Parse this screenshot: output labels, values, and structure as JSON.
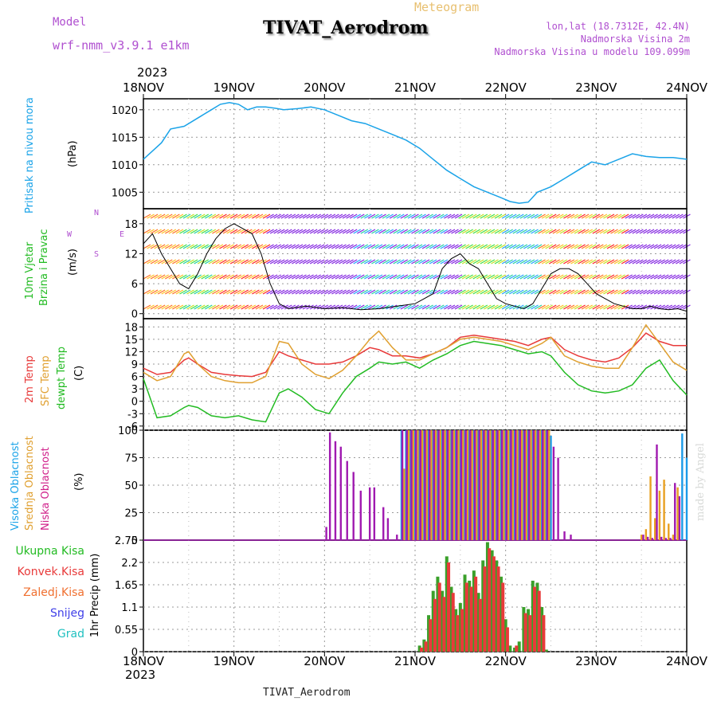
{
  "header": {
    "model_label": "Model",
    "model_name": "wrf-nmm_v3.9.1 e1km",
    "title": "TIVAT_Aerodrom",
    "subtitle": "Meteogram",
    "lonlat": "lon,lat (18.7312E, 42.4N)",
    "altitude": "Nadmorska Visina 2m",
    "model_altitude": "Nadmorska Visina u modelu 109.099m",
    "year_top": "2023",
    "year_bottom": "2023",
    "footer_station": "TIVAT_Aerodrom",
    "credit": "made by Angel"
  },
  "colors": {
    "pressure": "#1aa3e8",
    "temp2m": "#e83a3a",
    "sfc_temp": "#e0a030",
    "dewpoint": "#22bb22",
    "cloud_high": "#1a9ae8",
    "cloud_mid": "#e8a020",
    "cloud_low": "#a01ab0",
    "precip_total": "#3aa02a",
    "precip_conv": "#e83a3a",
    "title_purple": "#b050d0"
  },
  "panels": {
    "pressure": {
      "labels": [
        "Pritisak na nivou mora"
      ],
      "unit": "(hPa)",
      "yticks": [
        "1005",
        "1010",
        "1015",
        "1020"
      ]
    },
    "wind": {
      "labels": [
        "10m Vjetar",
        "Brzina i Pravac"
      ],
      "unit": "(m/s)",
      "compass": {
        "n": "N",
        "s": "S",
        "w": "W",
        "e": "E"
      },
      "yticks": [
        "0",
        "6",
        "12",
        "18"
      ]
    },
    "temp": {
      "labels": [
        "2m Temp",
        "SFC Temp",
        "dewpt Temp"
      ],
      "unit": "(C)",
      "yticks": [
        "-6",
        "-3",
        "0",
        "3",
        "6",
        "9",
        "12",
        "15",
        "18"
      ]
    },
    "cloud": {
      "labels": [
        "Visoka Oblacnost",
        "Srednja Oblacnost",
        "Niska Oblacnost"
      ],
      "unit": "(%)",
      "yticks": [
        "0",
        "25",
        "50",
        "75",
        "100"
      ]
    },
    "precip": {
      "legend": [
        "Ukupna Kisa",
        "Konvek.Kisa",
        "Zaledj.Kisa",
        "Snijeg",
        "Grad"
      ],
      "unit_label": "1hr Precip (mm)",
      "yticks": [
        "0",
        "0.55",
        "1.1",
        "1.65",
        "2.2",
        "2.75"
      ]
    }
  },
  "time_axis": {
    "labels": [
      "18NOV",
      "19NOV",
      "20NOV",
      "21NOV",
      "22NOV",
      "23NOV",
      "24NOV"
    ]
  },
  "chart_data": [
    {
      "type": "line",
      "name": "pressure",
      "ylim": [
        1002,
        1022
      ],
      "x_days": [
        0,
        0.1,
        0.2,
        0.3,
        0.45,
        0.6,
        0.75,
        0.85,
        0.95,
        1.05,
        1.15,
        1.25,
        1.35,
        1.45,
        1.55,
        1.7,
        1.85,
        2.0,
        2.15,
        2.3,
        2.45,
        2.6,
        2.75,
        2.9,
        3.05,
        3.2,
        3.35,
        3.5,
        3.65,
        3.8,
        3.95,
        4.05,
        4.15,
        4.25,
        4.35,
        4.5,
        4.65,
        4.8,
        4.95,
        5.1,
        5.25,
        5.4,
        5.55,
        5.7,
        5.85,
        6.0
      ],
      "values": [
        1011.0,
        1012.5,
        1014.0,
        1016.5,
        1017.0,
        1018.5,
        1020.0,
        1021.0,
        1021.3,
        1021.0,
        1020.0,
        1020.5,
        1020.5,
        1020.3,
        1020.0,
        1020.2,
        1020.5,
        1020.0,
        1019.0,
        1018.0,
        1017.5,
        1016.5,
        1015.5,
        1014.5,
        1013.0,
        1011.0,
        1009.0,
        1007.5,
        1006.0,
        1005.0,
        1004.0,
        1003.3,
        1003.0,
        1003.2,
        1005.0,
        1006.0,
        1007.5,
        1009.0,
        1010.5,
        1010.0,
        1011.0,
        1012.0,
        1011.5,
        1011.3,
        1011.3,
        1011.0
      ]
    },
    {
      "type": "line",
      "name": "wind_speed",
      "ylim": [
        -1,
        21
      ],
      "x_days": [
        0,
        0.1,
        0.2,
        0.3,
        0.4,
        0.5,
        0.6,
        0.7,
        0.8,
        0.9,
        1.0,
        1.1,
        1.2,
        1.3,
        1.4,
        1.5,
        1.6,
        1.8,
        2.0,
        2.2,
        2.4,
        2.6,
        2.8,
        3.0,
        3.1,
        3.2,
        3.3,
        3.4,
        3.5,
        3.6,
        3.7,
        3.8,
        3.9,
        4.0,
        4.1,
        4.2,
        4.3,
        4.4,
        4.5,
        4.6,
        4.7,
        4.8,
        4.9,
        5.0,
        5.1,
        5.2,
        5.3,
        5.4,
        5.5,
        5.6,
        5.7,
        5.8,
        5.9,
        6.0
      ],
      "values": [
        14,
        16,
        12,
        9,
        6,
        5,
        8,
        12,
        15,
        17,
        18,
        17,
        16,
        12,
        6,
        2,
        1,
        1.5,
        1,
        1.2,
        0.8,
        1,
        1.5,
        2,
        3,
        4,
        9,
        11,
        12,
        10,
        9,
        6,
        3,
        2,
        1.5,
        1,
        2,
        5,
        8,
        9,
        9,
        8,
        6,
        4,
        3,
        2,
        1.5,
        1,
        1,
        1.5,
        1,
        0.8,
        1,
        0.5
      ]
    },
    {
      "type": "line",
      "name": "temperature",
      "ylim": [
        -7,
        20
      ],
      "x_days": [
        0,
        0.15,
        0.3,
        0.45,
        0.5,
        0.6,
        0.75,
        0.9,
        1.05,
        1.2,
        1.35,
        1.5,
        1.6,
        1.75,
        1.9,
        2.05,
        2.2,
        2.35,
        2.5,
        2.6,
        2.75,
        2.9,
        3.05,
        3.2,
        3.35,
        3.5,
        3.65,
        3.8,
        3.95,
        4.1,
        4.25,
        4.4,
        4.5,
        4.65,
        4.8,
        4.95,
        5.1,
        5.25,
        5.4,
        5.55,
        5.7,
        5.85,
        6.0
      ],
      "series": [
        {
          "name": "2m Temp",
          "values": [
            8,
            6.5,
            7,
            10,
            10.5,
            9,
            7,
            6.5,
            6.2,
            6,
            7,
            12,
            11,
            10,
            9,
            9,
            9.5,
            11,
            13,
            12.5,
            11,
            11,
            10.5,
            11.5,
            13,
            15.5,
            16,
            15.5,
            15,
            14.5,
            13.5,
            15,
            15.5,
            12.5,
            11,
            10,
            9.5,
            10.5,
            13,
            16.5,
            14.5,
            13.5,
            13.5
          ]
        },
        {
          "name": "SFC Temp",
          "values": [
            7,
            5,
            6,
            11.5,
            12,
            9,
            6,
            5,
            4.5,
            4.5,
            6,
            14.5,
            14,
            9,
            6.5,
            5.5,
            7.5,
            11,
            15,
            17,
            13,
            10,
            10,
            11.5,
            13,
            15,
            15.5,
            15,
            14.5,
            13.5,
            12.5,
            14,
            15.5,
            11,
            9.5,
            8.5,
            8,
            8,
            13,
            18.5,
            14,
            9.5,
            7.5
          ]
        },
        {
          "name": "dewpt Temp",
          "values": [
            5.5,
            -4,
            -3.5,
            -1.5,
            -1,
            -1.5,
            -3.5,
            -4,
            -3.5,
            -4.5,
            -5,
            2,
            3,
            1,
            -2,
            -3,
            2,
            6,
            8,
            9.5,
            9,
            9.5,
            8,
            10,
            11.5,
            13.5,
            14.5,
            14,
            13.5,
            12.5,
            11.5,
            12,
            11,
            7,
            4,
            2.5,
            2,
            2.5,
            4,
            8,
            10,
            5,
            1.5
          ]
        }
      ]
    },
    {
      "type": "bar",
      "name": "cloud_cover",
      "ylim": [
        0,
        100
      ],
      "series": [
        {
          "name": "Visoka Oblacnost",
          "x_days": [
            2.85,
            2.9,
            2.95,
            3.0,
            3.05,
            3.1,
            3.15,
            3.2,
            3.25,
            3.3,
            3.35,
            3.4,
            3.45,
            3.5,
            3.55,
            3.6,
            3.65,
            3.7,
            3.75,
            3.8,
            3.85,
            3.9,
            3.95,
            4.0,
            4.05,
            4.1,
            4.15,
            4.2,
            4.25,
            4.3,
            4.35,
            4.4,
            4.45,
            4.5,
            5.95,
            6.0
          ],
          "values": [
            100,
            100,
            100,
            100,
            100,
            100,
            100,
            100,
            100,
            100,
            100,
            100,
            100,
            100,
            100,
            100,
            100,
            100,
            100,
            100,
            100,
            100,
            100,
            100,
            100,
            100,
            100,
            100,
            100,
            100,
            100,
            100,
            100,
            95,
            97,
            75
          ]
        },
        {
          "name": "Srednja Oblacnost",
          "x_days": [
            2.88,
            2.93,
            2.98,
            3.03,
            3.08,
            3.13,
            3.18,
            3.23,
            3.28,
            3.33,
            3.38,
            3.43,
            3.48,
            3.53,
            3.58,
            3.63,
            3.68,
            3.73,
            3.78,
            3.83,
            3.88,
            3.93,
            3.98,
            4.03,
            4.08,
            4.13,
            4.18,
            4.23,
            4.28,
            4.33,
            4.38,
            4.43,
            4.48,
            5.5,
            5.55,
            5.6,
            5.65,
            5.7,
            5.75,
            5.8,
            5.85,
            5.9
          ],
          "values": [
            65,
            100,
            100,
            100,
            100,
            100,
            100,
            100,
            100,
            100,
            100,
            100,
            100,
            100,
            100,
            100,
            100,
            100,
            100,
            100,
            100,
            100,
            100,
            100,
            100,
            100,
            100,
            100,
            100,
            100,
            100,
            100,
            100,
            5,
            10,
            58,
            20,
            45,
            55,
            15,
            5,
            48
          ]
        },
        {
          "name": "Niska Oblacnost",
          "x_days": [
            2.02,
            2.06,
            2.12,
            2.18,
            2.25,
            2.32,
            2.4,
            2.5,
            2.55,
            2.65,
            2.7,
            2.8,
            2.86,
            2.91,
            2.96,
            3.01,
            3.06,
            3.11,
            3.16,
            3.21,
            3.26,
            3.31,
            3.36,
            3.41,
            3.46,
            3.51,
            3.56,
            3.61,
            3.66,
            3.71,
            3.76,
            3.81,
            3.86,
            3.91,
            3.96,
            4.01,
            4.06,
            4.11,
            4.16,
            4.21,
            4.26,
            4.31,
            4.36,
            4.41,
            4.46,
            4.53,
            4.58,
            4.65,
            4.72,
            5.52,
            5.57,
            5.62,
            5.67,
            5.72,
            5.77,
            5.82,
            5.87,
            5.92
          ],
          "values": [
            12,
            98,
            90,
            85,
            72,
            62,
            45,
            48,
            48,
            30,
            20,
            5,
            100,
            100,
            100,
            100,
            100,
            100,
            100,
            100,
            100,
            100,
            100,
            100,
            100,
            100,
            100,
            100,
            100,
            100,
            100,
            100,
            100,
            100,
            100,
            100,
            100,
            100,
            100,
            100,
            100,
            100,
            100,
            100,
            100,
            85,
            75,
            8,
            5,
            5,
            3,
            2,
            87,
            3,
            2,
            2,
            52,
            40
          ]
        }
      ]
    },
    {
      "type": "bar",
      "name": "precipitation",
      "ylim": [
        0,
        2.75
      ],
      "series": [
        {
          "name": "Ukupna Kisa",
          "x_days": [
            3.05,
            3.1,
            3.15,
            3.2,
            3.25,
            3.3,
            3.35,
            3.4,
            3.45,
            3.5,
            3.55,
            3.6,
            3.65,
            3.7,
            3.75,
            3.8,
            3.85,
            3.9,
            3.95,
            4.0,
            4.05,
            4.1,
            4.15,
            4.2,
            4.25,
            4.3,
            4.35,
            4.4,
            4.45
          ],
          "values": [
            0.15,
            0.3,
            0.9,
            1.5,
            1.85,
            1.5,
            2.35,
            1.6,
            1.05,
            1.2,
            1.9,
            1.75,
            2.0,
            1.45,
            2.25,
            2.7,
            2.5,
            2.25,
            1.85,
            0.8,
            0.15,
            0.1,
            0.25,
            1.1,
            1.05,
            1.75,
            1.7,
            1.1,
            0.05
          ]
        },
        {
          "name": "Konvek.Kisa",
          "x_days": [
            3.07,
            3.12,
            3.17,
            3.22,
            3.27,
            3.32,
            3.37,
            3.42,
            3.47,
            3.52,
            3.57,
            3.62,
            3.67,
            3.72,
            3.77,
            3.82,
            3.87,
            3.92,
            3.97,
            4.02,
            4.12,
            4.22,
            4.27,
            4.32,
            4.37,
            4.42
          ],
          "values": [
            0.1,
            0.25,
            0.8,
            1.3,
            1.7,
            1.35,
            2.2,
            1.45,
            0.9,
            1.05,
            1.7,
            1.6,
            1.85,
            1.3,
            2.1,
            2.55,
            2.35,
            2.1,
            1.7,
            0.6,
            0.15,
            0.95,
            0.9,
            1.6,
            1.5,
            0.9
          ]
        }
      ]
    }
  ]
}
